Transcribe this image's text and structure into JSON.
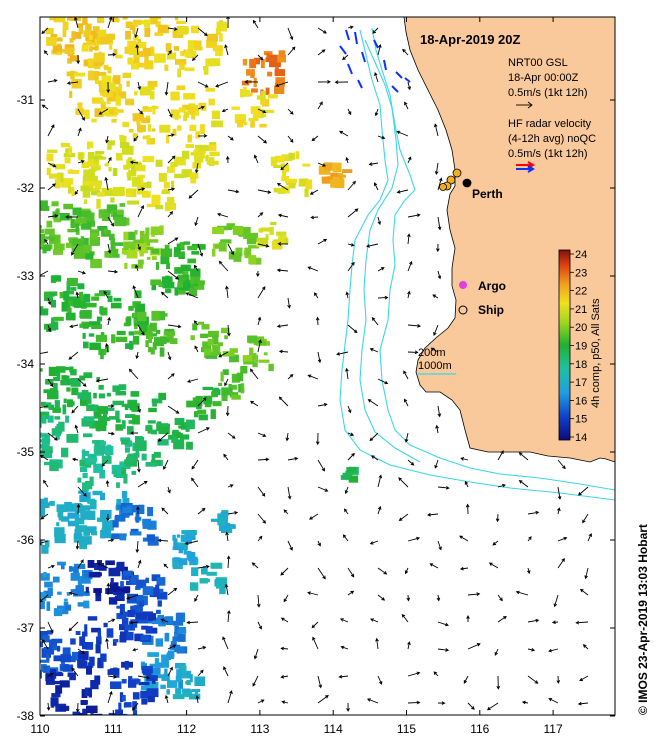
{
  "title": "18-Apr-2019 20Z",
  "legend": {
    "gsl_line1": "NRT00 GSL",
    "gsl_line2": "18-Apr 00:00Z",
    "gsl_line3": "0.5m/s (1kt 12h)",
    "hf_line1": "HF radar velocity",
    "hf_line2": "(4-12h avg) noQC",
    "hf_line3": "0.5m/s (1kt 12h)",
    "contour_200": "200m",
    "contour_1000": "1000m"
  },
  "places": {
    "perth": "Perth",
    "argo": "Argo",
    "ship": "Ship"
  },
  "colorbar": {
    "label": "4h comp, p50, All Sats",
    "ticks": [
      "14",
      "15",
      "16",
      "17",
      "18",
      "19",
      "20",
      "21",
      "22",
      "23",
      "24"
    ],
    "min": 14,
    "max": 24
  },
  "axes": {
    "x_ticks": [
      "110",
      "111",
      "112",
      "113",
      "114",
      "115",
      "116",
      "117"
    ],
    "y_ticks": [
      "-31",
      "-32",
      "-33",
      "-34",
      "-35",
      "-36",
      "-37",
      "-38"
    ],
    "lon_range": [
      110,
      117.9
    ],
    "lat_range": [
      -30.2,
      -38
    ]
  },
  "credit": "© IMOS 23-Apr-2019 13:03 Hobart",
  "colors": {
    "land": "#f9c89b",
    "contour": "#3cd6e6",
    "argo": "#e040e0",
    "hf_red": "#ff0000",
    "hf_blue": "#1030ff"
  }
}
